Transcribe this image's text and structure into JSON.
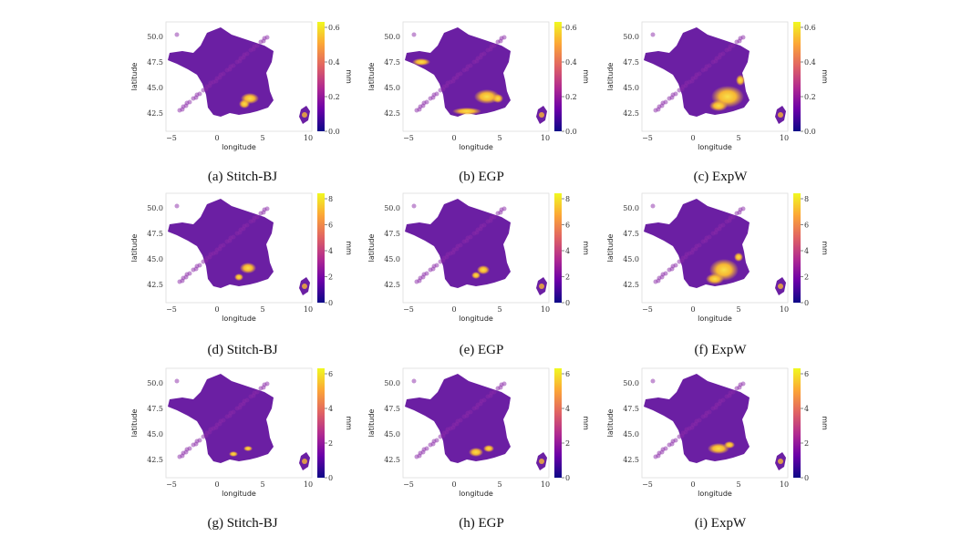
{
  "figure": {
    "colorbar_colors": [
      "#0d0887",
      "#6a00a8",
      "#b12a90",
      "#e16462",
      "#fca636",
      "#f0f921"
    ],
    "map_base_color": "#6b1fa3",
    "hot_color": "#f7b733"
  },
  "panels": [
    {
      "id": "a",
      "caption": "(a) Stitch-BJ",
      "cbar_ticks": [
        "0.6",
        "0.4",
        "0.2",
        "0.0"
      ],
      "cbar_label": "mm",
      "xlabel": "longitude",
      "ylabel": "latitude",
      "xticks": [
        "−5",
        "0",
        "5",
        "10"
      ],
      "yticks": [
        "50.0",
        "47.5",
        "45.0",
        "42.5"
      ]
    },
    {
      "id": "b",
      "caption": "(b) EGP",
      "cbar_ticks": [
        "0.6",
        "0.4",
        "0.2",
        "0.0"
      ],
      "cbar_label": "mm",
      "xlabel": "longitude",
      "ylabel": "latitude",
      "xticks": [
        "−5",
        "0",
        "5",
        "10"
      ],
      "yticks": [
        "50.0",
        "47.5",
        "45.0",
        "42.5"
      ]
    },
    {
      "id": "c",
      "caption": "(c) ExpW",
      "cbar_ticks": [
        "0.6",
        "0.4",
        "0.2",
        "0.0"
      ],
      "cbar_label": "mm",
      "xlabel": "longitude",
      "ylabel": "latitude",
      "xticks": [
        "−5",
        "0",
        "5",
        "10"
      ],
      "yticks": [
        "50.0",
        "47.5",
        "45.0",
        "42.5"
      ]
    },
    {
      "id": "d",
      "caption": "(d) Stitch-BJ",
      "cbar_ticks": [
        "8",
        "6",
        "4",
        "2",
        "0"
      ],
      "cbar_label": "mm",
      "xlabel": "longitude",
      "ylabel": "latitude",
      "xticks": [
        "−5",
        "0",
        "5",
        "10"
      ],
      "yticks": [
        "50.0",
        "47.5",
        "45.0",
        "42.5"
      ]
    },
    {
      "id": "e",
      "caption": "(e) EGP",
      "cbar_ticks": [
        "8",
        "6",
        "4",
        "2",
        "0"
      ],
      "cbar_label": "mm",
      "xlabel": "longitude",
      "ylabel": "latitude",
      "xticks": [
        "−5",
        "0",
        "5",
        "10"
      ],
      "yticks": [
        "50.0",
        "47.5",
        "45.0",
        "42.5"
      ]
    },
    {
      "id": "f",
      "caption": "(f) ExpW",
      "cbar_ticks": [
        "8",
        "6",
        "4",
        "2",
        "0"
      ],
      "cbar_label": "mm",
      "xlabel": "longitude",
      "ylabel": "latitude",
      "xticks": [
        "−5",
        "0",
        "5",
        "10"
      ],
      "yticks": [
        "50.0",
        "47.5",
        "45.0",
        "42.5"
      ]
    },
    {
      "id": "g",
      "caption": "(g) Stitch-BJ",
      "cbar_ticks": [
        "6",
        "4",
        "2",
        "0"
      ],
      "cbar_label": "mm",
      "xlabel": "longitude",
      "ylabel": "latitude",
      "xticks": [
        "−5",
        "0",
        "5",
        "10"
      ],
      "yticks": [
        "50.0",
        "47.5",
        "45.0",
        "42.5"
      ]
    },
    {
      "id": "h",
      "caption": "(h) EGP",
      "cbar_ticks": [
        "6",
        "4",
        "2",
        "0"
      ],
      "cbar_label": "mm",
      "xlabel": "longitude",
      "ylabel": "latitude",
      "xticks": [
        "−5",
        "0",
        "5",
        "10"
      ],
      "yticks": [
        "50.0",
        "47.5",
        "45.0",
        "42.5"
      ]
    },
    {
      "id": "i",
      "caption": "(i) ExpW",
      "cbar_ticks": [
        "6",
        "4",
        "2",
        "0"
      ],
      "cbar_label": "mm",
      "xlabel": "longitude",
      "ylabel": "latitude",
      "xticks": [
        "−5",
        "0",
        "5",
        "10"
      ],
      "yticks": [
        "50.0",
        "47.5",
        "45.0",
        "42.5"
      ]
    }
  ]
}
